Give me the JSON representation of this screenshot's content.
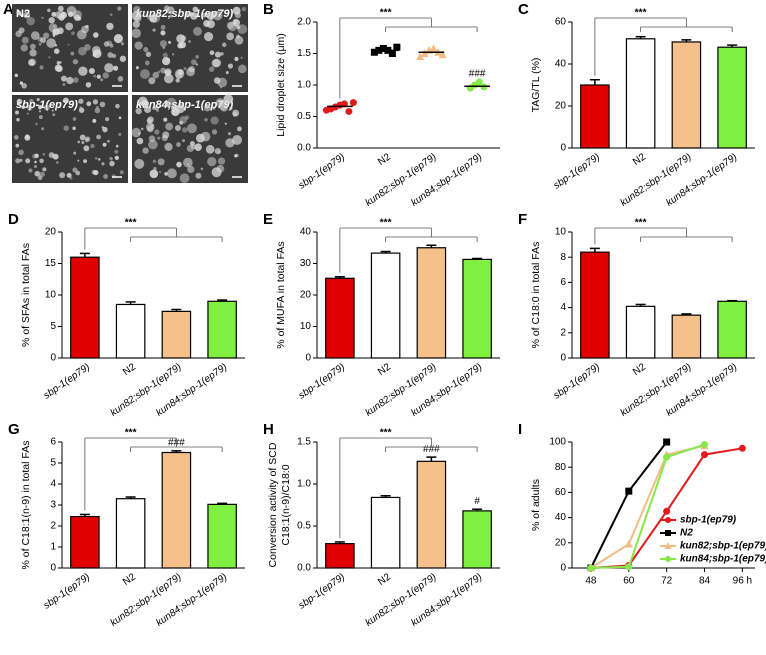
{
  "images": {
    "panel": "A",
    "labels": [
      "N2",
      "kun82;sbp-1(ep79)",
      "sbp-1(ep79)",
      "kun84;sbp-1(ep79)"
    ]
  },
  "chart_data": [
    {
      "type": "strip",
      "panel": "B",
      "ylabel": "Lipid droplet size (μm)",
      "categories": [
        "sbp-1(ep79)",
        "N2",
        "kun82;sbp-1(ep79)",
        "kun84;sbp-1(ep79)"
      ],
      "colors": [
        "#e31a1c",
        "#000000",
        "#f2bd84",
        "#86e84a"
      ],
      "markers": [
        "circle",
        "square",
        "triangle",
        "circle"
      ],
      "points": [
        [
          0.6,
          0.62,
          0.65,
          0.68,
          0.7,
          0.58,
          0.72
        ],
        [
          1.52,
          1.55,
          1.58,
          1.55,
          1.5,
          1.6
        ],
        [
          1.45,
          1.5,
          1.55,
          1.58,
          1.52,
          1.48
        ],
        [
          0.95,
          1.0,
          1.05,
          0.97
        ]
      ],
      "means": [
        0.66,
        1.55,
        1.52,
        0.98
      ],
      "ylim": [
        0,
        2
      ],
      "yticks": [
        {
          "value": 0,
          "label": "0.0"
        },
        {
          "value": 0.5,
          "label": "0.5"
        },
        {
          "value": 1,
          "label": "1.0"
        },
        {
          "value": 1.5,
          "label": "1.5"
        },
        {
          "value": 2,
          "label": "2.0"
        }
      ],
      "sig": "***",
      "group_labels": [
        null,
        null,
        null,
        "###"
      ]
    },
    {
      "type": "bar",
      "panel": "C",
      "ylabel": "TAG/TL (%)",
      "categories": [
        "sbp-1(ep79)",
        "N2",
        "kun82;sbp-1(ep79)",
        "kun84;sbp-1(ep79)"
      ],
      "colors": [
        "#e00000",
        "#ffffff",
        "#f5c08a",
        "#80f040"
      ],
      "values": [
        30,
        52,
        50.5,
        48
      ],
      "errors": [
        2.5,
        1,
        1,
        1
      ],
      "ylim": [
        0,
        60
      ],
      "yticks": [
        0,
        20,
        40,
        60
      ],
      "sig": "***",
      "group_labels": [
        null,
        null,
        null,
        null
      ]
    },
    {
      "type": "bar",
      "panel": "D",
      "ylabel": "% of SFAs in total FAs",
      "categories": [
        "sbp-1(ep79)",
        "N2",
        "kun82;sbp-1(ep79)",
        "kun84;sbp-1(ep79)"
      ],
      "colors": [
        "#e00000",
        "#ffffff",
        "#f5c08a",
        "#80f040"
      ],
      "values": [
        16,
        8.5,
        7.4,
        9
      ],
      "errors": [
        0.6,
        0.4,
        0.3,
        0.2
      ],
      "ylim": [
        0,
        20
      ],
      "yticks": [
        0,
        5,
        10,
        15,
        20
      ],
      "sig": "***",
      "group_labels": [
        null,
        null,
        null,
        null
      ]
    },
    {
      "type": "bar",
      "panel": "E",
      "ylabel": "% of MUFA in total FAs",
      "categories": [
        "sbp-1(ep79)",
        "N2",
        "kun82;sbp-1(ep79)",
        "kun84;sbp-1(ep79)"
      ],
      "colors": [
        "#e00000",
        "#ffffff",
        "#f5c08a",
        "#80f040"
      ],
      "values": [
        25.3,
        33.3,
        35,
        31.3
      ],
      "errors": [
        0.5,
        0.5,
        0.8,
        0.3
      ],
      "ylim": [
        0,
        40
      ],
      "yticks": [
        0,
        10,
        20,
        30,
        40
      ],
      "sig": "***",
      "group_labels": [
        null,
        null,
        null,
        null
      ]
    },
    {
      "type": "bar",
      "panel": "F",
      "ylabel": "% of C18:0 in total FAs",
      "categories": [
        "sbp-1(ep79)",
        "N2",
        "kun82;sbp-1(ep79)",
        "kun84;sbp-1(ep79)"
      ],
      "colors": [
        "#e00000",
        "#ffffff",
        "#f5c08a",
        "#80f040"
      ],
      "values": [
        8.4,
        4.1,
        3.4,
        4.5
      ],
      "errors": [
        0.3,
        0.15,
        0.1,
        0.05
      ],
      "ylim": [
        0,
        10
      ],
      "yticks": [
        0,
        2,
        4,
        6,
        8,
        10
      ],
      "sig": "***",
      "group_labels": [
        null,
        null,
        null,
        null
      ]
    },
    {
      "type": "bar",
      "panel": "G",
      "ylabel": "% of C18:1(n-9) in total FAs",
      "categories": [
        "sbp-1(ep79)",
        "N2",
        "kun82;sbp-1(ep79)",
        "kun84;sbp-1(ep79)"
      ],
      "colors": [
        "#e00000",
        "#ffffff",
        "#f5c08a",
        "#80f040"
      ],
      "values": [
        2.45,
        3.3,
        5.5,
        3.03
      ],
      "errors": [
        0.1,
        0.08,
        0.08,
        0.05
      ],
      "ylim": [
        0,
        6
      ],
      "yticks": [
        0,
        1,
        2,
        3,
        4,
        5,
        6
      ],
      "sig": "***",
      "group_labels": [
        null,
        null,
        "###",
        null
      ]
    },
    {
      "type": "bar",
      "panel": "H",
      "ylabel": [
        "Conversion activity of SCD",
        "C18:1(n-9)/C18:0"
      ],
      "categories": [
        "sbp-1(ep79)",
        "N2",
        "kun82;sbp-1(ep79)",
        "kun84;sbp-1(ep79)"
      ],
      "colors": [
        "#e00000",
        "#ffffff",
        "#f5c08a",
        "#80f040"
      ],
      "values": [
        0.29,
        0.84,
        1.27,
        0.68
      ],
      "errors": [
        0.02,
        0.02,
        0.05,
        0.02
      ],
      "ylim": [
        0,
        1.5
      ],
      "yticks": [
        {
          "value": 0,
          "label": "0.0"
        },
        {
          "value": 0.5,
          "label": "0.5"
        },
        {
          "value": 1,
          "label": "1.0"
        },
        {
          "value": 1.5,
          "label": "1.5"
        }
      ],
      "sig": "***",
      "group_labels": [
        null,
        null,
        "###",
        "#"
      ]
    },
    {
      "type": "line",
      "panel": "I",
      "ylabel": "% of adults",
      "x": [
        48,
        60,
        72,
        84,
        96
      ],
      "series": [
        {
          "name": "sbp-1(ep79)",
          "color": "#e31a1c",
          "marker": "circle",
          "values": [
            0,
            2,
            45,
            90,
            95
          ]
        },
        {
          "name": "N2",
          "color": "#000000",
          "marker": "square",
          "values": [
            0,
            61,
            100,
            null,
            null
          ]
        },
        {
          "name": "kun82;sbp-1(ep79)",
          "color": "#f2bd84",
          "marker": "triangle",
          "values": [
            0,
            19,
            90,
            97,
            null
          ]
        },
        {
          "name": "kun84;sbp-1(ep79)",
          "color": "#86e84a",
          "marker": "circle",
          "values": [
            0,
            1,
            88,
            98,
            null
          ]
        }
      ],
      "xlim": [
        42,
        100
      ],
      "xticks": [
        48,
        60,
        72,
        84,
        {
          "value": 96,
          "label": "96 h"
        }
      ],
      "ylim": [
        0,
        100
      ],
      "yticks": [
        0,
        20,
        40,
        60,
        80,
        100
      ],
      "legend": "lower right"
    }
  ]
}
